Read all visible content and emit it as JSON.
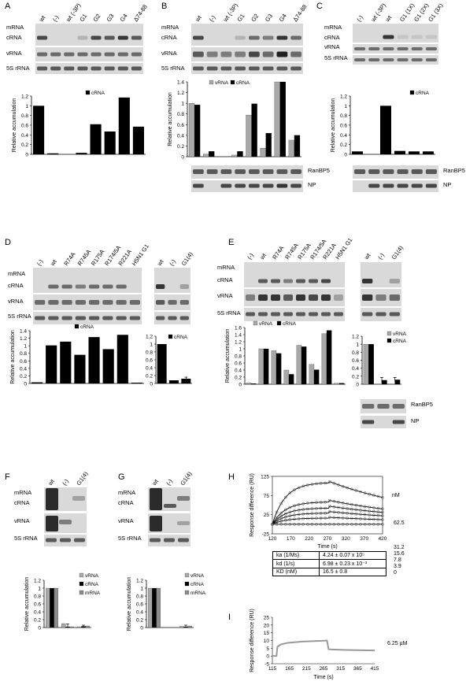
{
  "rows": {
    "mrna": "mRNA",
    "crna": "cRNA",
    "vrna": "vRNA",
    "s5": "5S rRNA",
    "ranbp5": "RanBP5",
    "np": "NP"
  },
  "axis": {
    "rel": "Relative accumulation",
    "resp": "Response difference (RU)",
    "time": "Time (s)"
  },
  "panels": {
    "A": {
      "letter": "A",
      "lanes": [
        "wt",
        "(-)",
        "wt (-3P)",
        "G1",
        "G2",
        "G3",
        "G4",
        "Δ74-88"
      ]
    },
    "B": {
      "letter": "B",
      "lanes": [
        "wt",
        "(-)",
        "wt (-3P)",
        "G1",
        "G2",
        "G3",
        "G4",
        "Δ74-88"
      ]
    },
    "C": {
      "letter": "C",
      "lanes": [
        "(-)",
        "wt (-3P)",
        "wt",
        "G1 (1X)",
        "G1 (2X)",
        "G1 (3X)"
      ]
    },
    "D": {
      "letter": "D",
      "lanes": [
        "(-)",
        "wt",
        "R74A",
        "R745A",
        "R175A",
        "R174/5A",
        "R221A",
        "H5N1 G1"
      ],
      "lanes2": [
        "wt",
        "(-)",
        "G1(4)"
      ]
    },
    "E": {
      "letter": "E",
      "lanes": [
        "(-)",
        "wt",
        "R74A",
        "R745A",
        "R175A",
        "R174/5A",
        "R221A",
        "H5N1 G1"
      ],
      "lanes2": [
        "wt",
        "(-)",
        "G1(4)"
      ]
    },
    "F": {
      "letter": "F",
      "lanes": [
        "wt",
        "(-)",
        "G1(4)"
      ]
    },
    "G": {
      "letter": "G",
      "lanes": [
        "wt",
        "(-)",
        "G1(4)"
      ]
    },
    "H": {
      "letter": "H"
    },
    "I": {
      "letter": "I"
    }
  },
  "legend": {
    "vrna": "vRNA",
    "crna": "cRNA",
    "mrna": "mRNA"
  },
  "kinetics": {
    "ka_label": "ka (1/Ms)",
    "ka_value": "4.24 ± 0.07 x 10⁵",
    "kd_label": "kd (1/s)",
    "kd_value": "6.98 ± 0.23 x 10⁻³",
    "KD_label": "KD (nM)",
    "KD_value": "16.5 ± 0.8"
  },
  "spr": {
    "unit": "nM",
    "concs": [
      "62.5",
      "31.2",
      "15.6",
      "7.8",
      "3.9",
      "0"
    ],
    "single_conc": "6.25 µM"
  },
  "chart_data": [
    {
      "id": "A",
      "type": "bar",
      "categories": [
        "wt",
        "(-)",
        "wt (-3P)",
        "G1",
        "G2",
        "G3",
        "G4",
        "Δ74-88"
      ],
      "series": [
        {
          "name": "cRNA",
          "values": [
            1.0,
            0.02,
            0.0,
            0.03,
            0.62,
            0.47,
            1.17,
            0.57
          ]
        }
      ],
      "ylim": [
        0,
        1.2
      ],
      "yticks": [
        "0",
        "0.2",
        "0.4",
        "0.6",
        "0.8",
        "1",
        "1.2"
      ]
    },
    {
      "id": "B",
      "type": "bar",
      "categories": [
        "wt",
        "(-)",
        "wt (-3P)",
        "G1",
        "G2",
        "G3",
        "G4",
        "Δ74-88"
      ],
      "series": [
        {
          "name": "vRNA",
          "values": [
            1.0,
            0.05,
            0.0,
            0.03,
            0.78,
            0.16,
            1.4,
            0.31
          ]
        },
        {
          "name": "cRNA",
          "values": [
            0.97,
            0.1,
            0.0,
            0.1,
            0.99,
            0.44,
            1.4,
            0.4
          ]
        }
      ],
      "ylim": [
        0,
        1.4
      ],
      "yticks": [
        "0",
        "0.2",
        "0.4",
        "0.6",
        "0.8",
        "1",
        "1.2",
        "1.4"
      ]
    },
    {
      "id": "C",
      "type": "bar",
      "categories": [
        "(-)",
        "wt (-3P)",
        "wt",
        "G1 (1X)",
        "G1 (2X)",
        "G1 (3X)"
      ],
      "series": [
        {
          "name": "cRNA",
          "values": [
            0.06,
            0.0,
            1.0,
            0.07,
            0.06,
            0.06
          ]
        }
      ],
      "ylim": [
        0,
        1.2
      ],
      "yticks": [
        "0",
        "0.2",
        "0.4",
        "0.6",
        "0.8",
        "1",
        "1.2"
      ]
    },
    {
      "id": "D1",
      "type": "bar",
      "categories": [
        "(-)",
        "wt",
        "R74A",
        "R745A",
        "R175A",
        "R174/5A",
        "R221A",
        "H5N1 G1"
      ],
      "series": [
        {
          "name": "cRNA",
          "values": [
            0.03,
            1.01,
            1.11,
            0.76,
            1.23,
            0.91,
            1.29,
            0.02
          ]
        }
      ],
      "ylim": [
        0,
        1.4
      ],
      "yticks": [
        "0",
        "0.2",
        "0.4",
        "0.6",
        "0.8",
        "1",
        "1.2",
        "1.4"
      ]
    },
    {
      "id": "D2",
      "type": "bar",
      "categories": [
        "wt",
        "(-)",
        "G1(4)"
      ],
      "series": [
        {
          "name": "cRNA",
          "values": [
            1.0,
            0.08,
            0.12
          ]
        }
      ],
      "errors": [
        0,
        0,
        0.04
      ],
      "ylim": [
        0,
        1.2
      ],
      "yticks": [
        "0",
        "0.2",
        "0.4",
        "0.6",
        "0.8",
        "1",
        "1.2"
      ]
    },
    {
      "id": "E1",
      "type": "bar",
      "categories": [
        "(-)",
        "wt",
        "R74A",
        "R745A",
        "R175A",
        "R174/5A",
        "R221A",
        "H5N1 G1"
      ],
      "series": [
        {
          "name": "vRNA",
          "values": [
            0.04,
            1.0,
            0.95,
            0.4,
            1.1,
            0.56,
            1.43,
            0.03
          ]
        },
        {
          "name": "cRNA",
          "values": [
            0.02,
            1.0,
            0.87,
            0.28,
            1.06,
            0.41,
            1.52,
            0.03
          ]
        }
      ],
      "ylim": [
        0,
        1.6
      ],
      "yticks": [
        "0",
        "0.2",
        "0.4",
        "0.6",
        "0.8",
        "1",
        "1.2",
        "1.4",
        "1.6"
      ]
    },
    {
      "id": "E2",
      "type": "bar",
      "categories": [
        "wt",
        "(-)",
        "G1(4)"
      ],
      "series": [
        {
          "name": "vRNA",
          "values": [
            1.0,
            0.0,
            0.0
          ]
        },
        {
          "name": "cRNA",
          "values": [
            1.0,
            0.1,
            0.11
          ]
        }
      ],
      "errors": [
        0,
        0.07,
        0.06
      ],
      "ylim": [
        0,
        1.2
      ],
      "yticks": [
        "0",
        "0.2",
        "0.4",
        "0.6",
        "0.8",
        "1",
        "1.2"
      ]
    },
    {
      "id": "F",
      "type": "bar",
      "categories": [
        "wt",
        "(-)",
        "G1(4)"
      ],
      "series": [
        {
          "name": "vRNA",
          "values": [
            1.0,
            0.1,
            0.02
          ]
        },
        {
          "name": "cRNA",
          "values": [
            1.0,
            0.02,
            0.03
          ]
        },
        {
          "name": "mRNA",
          "values": [
            1.0,
            0.02,
            0.04
          ]
        }
      ],
      "errors": [
        0,
        0.07,
        0.02
      ],
      "ylim": [
        0,
        1.2
      ],
      "yticks": [
        "0",
        "0.2",
        "0.4",
        "0.6",
        "0.8",
        "1",
        "1.2"
      ]
    },
    {
      "id": "G",
      "type": "bar",
      "categories": [
        "wt",
        "(-)",
        "G1(4)"
      ],
      "series": [
        {
          "name": "vRNA",
          "values": [
            1.0,
            0.0,
            0.03
          ]
        },
        {
          "name": "cRNA",
          "values": [
            1.0,
            0.0,
            0.02
          ]
        },
        {
          "name": "mRNA",
          "values": [
            1.0,
            0.0,
            0.04
          ]
        }
      ],
      "errors": [
        0,
        0,
        0.02
      ],
      "ylim": [
        0,
        1.2
      ],
      "yticks": [
        "0",
        "0.2",
        "0.4",
        "0.6",
        "0.8",
        "1",
        "1.2"
      ]
    },
    {
      "id": "H",
      "type": "line",
      "xlabel": "Time (s)",
      "ylabel": "Response difference (RU)",
      "xlim": [
        120,
        420
      ],
      "ylim": [
        -25,
        125
      ],
      "xticks": [
        "120",
        "170",
        "220",
        "270",
        "320",
        "370",
        "420"
      ],
      "yticks": [
        "-25",
        "25",
        "75",
        "125"
      ],
      "series": [
        {
          "name": "62.5",
          "peak": 108,
          "end": 70
        },
        {
          "name": "31.2",
          "peak": 58,
          "end": 40
        },
        {
          "name": "15.6",
          "peak": 42,
          "end": 31
        },
        {
          "name": "7.8",
          "peak": 29,
          "end": 22
        },
        {
          "name": "3.9",
          "peak": 16,
          "end": 12
        },
        {
          "name": "0",
          "peak": 0,
          "end": 0
        }
      ],
      "inject_start": 120,
      "inject_end": 275
    },
    {
      "id": "I",
      "type": "line",
      "xlabel": "Time (s)",
      "ylabel": "Response difference (RU)",
      "xlim": [
        115,
        415
      ],
      "ylim": [
        -5,
        25
      ],
      "xticks": [
        "115",
        "165",
        "215",
        "265",
        "315",
        "365",
        "415"
      ],
      "yticks": [
        "-5",
        "0",
        "5",
        "10",
        "15",
        "20",
        "25"
      ],
      "series": [
        {
          "name": "6.25 µM",
          "x": [
            115,
            127,
            130,
            140,
            160,
            200,
            260,
            275,
            280,
            330,
            380,
            415
          ],
          "y": [
            0,
            0,
            6,
            7.5,
            8.5,
            9.3,
            9.8,
            10,
            4.3,
            3.9,
            3.7,
            3.6
          ]
        }
      ]
    }
  ]
}
